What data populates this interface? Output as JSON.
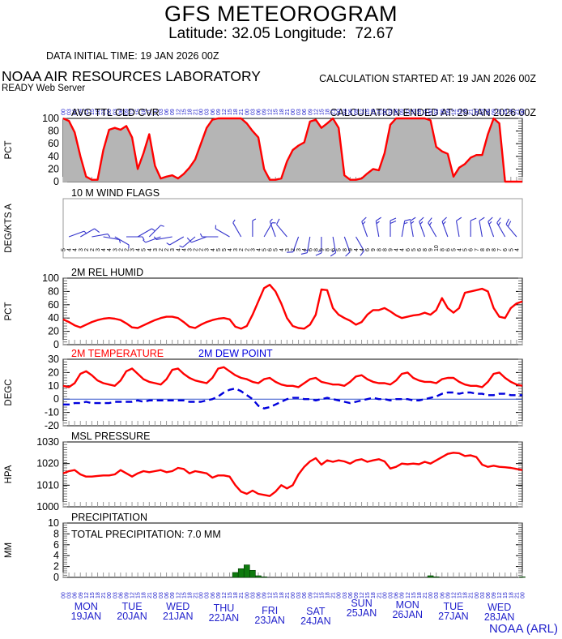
{
  "header": {
    "title": "GFS METEOROGRAM",
    "subtitle": "Latitude: 32.05 Longitude:  72.67",
    "data_initial_time": "DATA INITIAL TIME: 19 JAN 2026 00Z",
    "calc_started": "CALCULATION STARTED AT: 19 JAN 2026 00Z",
    "calc_ended": "CALCULATION ENDED AT: 29 JAN 2026 00Z",
    "org": "NOAA AIR RESOURCES LABORATORY",
    "server": "READY Web Server"
  },
  "footer": {
    "credit": "NOAA (ARL)"
  },
  "colors": {
    "line_red": "#ff0000",
    "blue": "#2222cc",
    "dew_blue": "#0000dd",
    "cloud_fill": "#b5b5b5",
    "precip_green": "#0e7a0e",
    "tick_gray": "#999999",
    "wind_box_gray": "#999999"
  },
  "x_axis": {
    "hours_total": 240,
    "step_hours": 3,
    "hour_label_cycle": [
      "00",
      "03",
      "06",
      "09",
      "12",
      "15",
      "18",
      "21"
    ],
    "day_labels": [
      {
        "dow": "MON",
        "date": "19JAN"
      },
      {
        "dow": "TUE",
        "date": "20JAN"
      },
      {
        "dow": "WED",
        "date": "21JAN"
      },
      {
        "dow": "THU",
        "date": "22JAN"
      },
      {
        "dow": "FRI",
        "date": "23JAN"
      },
      {
        "dow": "SAT",
        "date": "24JAN"
      },
      {
        "dow": "SUN",
        "date": "25JAN"
      },
      {
        "dow": "MON",
        "date": "26JAN"
      },
      {
        "dow": "TUE",
        "date": "27JAN"
      },
      {
        "dow": "WED",
        "date": "28JAN"
      }
    ]
  },
  "chart_data": [
    {
      "id": "cloud",
      "type": "area",
      "title": "AVG TTL CLD CVR",
      "ylabel": "PCT",
      "ylim": [
        0,
        100
      ],
      "yticks": [
        0,
        20,
        40,
        60,
        80,
        100
      ],
      "series": [
        {
          "name": "avg_total_cloud_cover_pct",
          "color": "#ff0000",
          "fill": "#b5b5b5",
          "values": [
            100,
            96,
            78,
            40,
            8,
            3,
            3,
            50,
            82,
            85,
            82,
            88,
            70,
            20,
            45,
            75,
            25,
            5,
            8,
            10,
            5,
            12,
            22,
            35,
            60,
            85,
            98,
            100,
            100,
            100,
            100,
            100,
            92,
            80,
            70,
            20,
            3,
            3,
            5,
            32,
            50,
            57,
            62,
            95,
            98,
            85,
            92,
            100,
            85,
            10,
            3,
            3,
            5,
            13,
            20,
            18,
            45,
            90,
            100,
            100,
            100,
            100,
            100,
            100,
            97,
            55,
            48,
            44,
            8,
            22,
            28,
            38,
            42,
            42,
            75,
            100,
            92,
            0,
            0,
            0,
            0
          ]
        }
      ]
    },
    {
      "id": "wind",
      "type": "barbs",
      "title": "10 M  WIND FLAGS",
      "ylabel": "DEG/KTS A",
      "units": "DEG/KTS",
      "dirs_deg": [
        70,
        60,
        80,
        100,
        120,
        90,
        60,
        45,
        250,
        260,
        240,
        230,
        250,
        270,
        300,
        330,
        0,
        30,
        340,
        320,
        200,
        190,
        180,
        170,
        160,
        150,
        340,
        350,
        0,
        10,
        350,
        340,
        330,
        340,
        350,
        0,
        350,
        340,
        330,
        320
      ],
      "speeds_kt": [
        4,
        5,
        3,
        4,
        3,
        2,
        3,
        4,
        3,
        2,
        3,
        4,
        5,
        4,
        3,
        2,
        2,
        3,
        4,
        5,
        6,
        8,
        9,
        8,
        6,
        5,
        8,
        9,
        10,
        9,
        8,
        8,
        9,
        8,
        6,
        5,
        6,
        8,
        9,
        10
      ],
      "speed_labels": [
        5,
        4,
        4,
        3,
        2,
        2,
        3,
        4,
        4,
        3,
        2,
        2,
        3,
        4,
        5,
        4,
        3,
        2,
        2,
        3,
        4,
        4,
        3,
        2,
        2,
        3,
        4,
        5,
        5,
        4,
        3,
        2,
        2,
        3,
        4,
        5,
        6,
        5,
        4,
        3,
        2,
        3,
        4,
        6,
        8,
        9,
        8,
        6,
        5,
        8,
        9,
        4,
        4,
        6,
        9,
        8,
        8,
        9,
        4,
        4,
        6,
        5,
        6,
        8,
        9,
        10,
        8,
        6,
        5,
        4,
        5,
        6,
        7,
        8,
        9,
        8,
        7,
        6,
        5,
        4
      ]
    },
    {
      "id": "rh",
      "type": "line",
      "title": "2M REL HUMID",
      "ylabel": "PCT",
      "ylim": [
        0,
        100
      ],
      "yticks": [
        0,
        20,
        40,
        60,
        80,
        100
      ],
      "series": [
        {
          "name": "rel_humid_2m_pct",
          "color": "#ff0000",
          "values": [
            38,
            34,
            29,
            26,
            30,
            34,
            37,
            39,
            40,
            39,
            37,
            32,
            26,
            25,
            29,
            33,
            37,
            40,
            42,
            42,
            40,
            34,
            27,
            25,
            30,
            34,
            37,
            39,
            40,
            38,
            27,
            24,
            28,
            45,
            65,
            85,
            90,
            80,
            62,
            40,
            28,
            25,
            24,
            30,
            45,
            83,
            82,
            55,
            45,
            40,
            36,
            30,
            34,
            45,
            52,
            52,
            55,
            50,
            44,
            40,
            42,
            44,
            45,
            48,
            45,
            52,
            70,
            55,
            48,
            55,
            78,
            80,
            82,
            84,
            80,
            55,
            42,
            40,
            55,
            62,
            65
          ]
        }
      ]
    },
    {
      "id": "temp",
      "type": "line",
      "title": "2M TEMPERATURE",
      "title_color": "#ff0000",
      "title2": "2M  DEW POINT",
      "title2_color": "#0000dd",
      "ylabel": "DEGC",
      "ylim": [
        -20,
        30
      ],
      "yticks": [
        -20,
        -10,
        0,
        10,
        20,
        30
      ],
      "zero_line": 0,
      "series": [
        {
          "name": "temperature_2m_c",
          "color": "#ff0000",
          "values": [
            10,
            9,
            12,
            19,
            21,
            18,
            14,
            12,
            11,
            10,
            14,
            21,
            23,
            19,
            15,
            13,
            12,
            11,
            15,
            22,
            23,
            19,
            16,
            14,
            13,
            12,
            16,
            23,
            24,
            21,
            18,
            16,
            15,
            13,
            12,
            15,
            16,
            13,
            11,
            10,
            10,
            9,
            12,
            15,
            16,
            13,
            12,
            11,
            11,
            10,
            13,
            17,
            18,
            15,
            13,
            12,
            12,
            11,
            14,
            19,
            20,
            16,
            14,
            13,
            13,
            12,
            15,
            16,
            16,
            13,
            11,
            10,
            10,
            9,
            13,
            19,
            20,
            16,
            13,
            11,
            10
          ]
        },
        {
          "name": "dew_point_2m_c",
          "color": "#0000dd",
          "dash": true,
          "values": [
            -4,
            -4,
            -3,
            -3,
            -2,
            -3,
            -3,
            -3,
            -3,
            -2,
            -2,
            -2,
            -2,
            -1,
            -2,
            -1,
            -1,
            -1,
            -1,
            -1,
            -1,
            -1,
            -2,
            -2,
            -2,
            -1,
            0,
            2,
            5,
            7,
            8,
            6,
            3,
            0,
            -5,
            -7,
            -6,
            -4,
            -2,
            0,
            1,
            1,
            0,
            0,
            -1,
            0,
            1,
            0,
            -1,
            -2,
            -3,
            -2,
            -1,
            0,
            1,
            0,
            0,
            -1,
            0,
            0,
            0,
            -1,
            -1,
            0,
            1,
            2,
            4,
            5,
            5,
            4,
            5,
            5,
            4,
            4,
            3,
            3,
            4,
            4,
            3,
            3,
            3
          ]
        }
      ]
    },
    {
      "id": "pres",
      "type": "line",
      "title": "MSL PRESSURE",
      "ylabel": "HPA",
      "ylim": [
        1000,
        1030
      ],
      "yticks": [
        1000,
        1010,
        1020,
        1030
      ],
      "series": [
        {
          "name": "msl_pressure_hpa",
          "color": "#ff0000",
          "values": [
            1015.5,
            1016.5,
            1017,
            1015,
            1014,
            1014,
            1014.3,
            1014.5,
            1014.5,
            1015,
            1017,
            1015.5,
            1014,
            1015.5,
            1016.5,
            1016,
            1016.5,
            1017,
            1016,
            1016.5,
            1018,
            1017.5,
            1015.5,
            1016.5,
            1016,
            1015.5,
            1013.5,
            1014.5,
            1014.5,
            1014,
            1010,
            1007,
            1006,
            1007.5,
            1006,
            1005.5,
            1005,
            1007,
            1010,
            1008.5,
            1010,
            1015,
            1018.5,
            1021,
            1022.5,
            1019.5,
            1021.5,
            1020.8,
            1021.5,
            1021,
            1020,
            1021.5,
            1022,
            1020.8,
            1021.5,
            1022,
            1021,
            1017.7,
            1018.5,
            1020,
            1019.7,
            1020,
            1019.7,
            1020.8,
            1020,
            1021.5,
            1023,
            1024.5,
            1025,
            1024.8,
            1023.5,
            1023.8,
            1023,
            1019.5,
            1018.5,
            1019,
            1018.5,
            1018.3,
            1018,
            1017.5,
            1017
          ]
        }
      ]
    },
    {
      "id": "precip",
      "type": "bar",
      "title": "PRECIPITATION",
      "inner_label": "TOTAL PRECIPITATION:  7.0 MM",
      "total_mm": 7.0,
      "ylabel": "MM",
      "ylim": [
        0,
        10
      ],
      "yticks": [
        0,
        2,
        4,
        6,
        8,
        10
      ],
      "bar_color": "#0e7a0e",
      "values": [
        0,
        0,
        0,
        0,
        0,
        0,
        0,
        0,
        0,
        0,
        0,
        0,
        0,
        0,
        0,
        0,
        0,
        0,
        0,
        0,
        0,
        0,
        0,
        0,
        0,
        0,
        0,
        0,
        0,
        0,
        0.9,
        1.6,
        2.3,
        1.3,
        0.3,
        0.1,
        0,
        0,
        0,
        0,
        0,
        0,
        0,
        0,
        0,
        0,
        0,
        0,
        0,
        0,
        0,
        0,
        0,
        0,
        0,
        0,
        0,
        0,
        0,
        0,
        0,
        0,
        0,
        0,
        0.3,
        0.1,
        0,
        0,
        0,
        0,
        0,
        0,
        0,
        0,
        0,
        0,
        0,
        0,
        0,
        0,
        0.1
      ]
    }
  ]
}
